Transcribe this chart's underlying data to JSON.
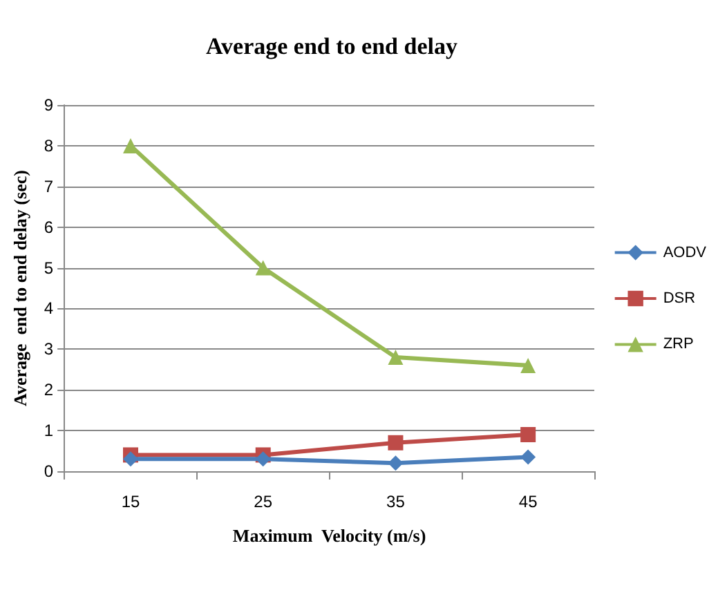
{
  "chart_data": {
    "type": "line",
    "title": "Average end to end delay",
    "xlabel": "Maximum  Velocity (m/s)",
    "ylabel": "Average  end to end delay (sec)",
    "categories": [
      "15",
      "25",
      "35",
      "45"
    ],
    "series": [
      {
        "name": "AODV",
        "color": "#4a7ebb",
        "marker": "diamond",
        "values": [
          0.3,
          0.3,
          0.2,
          0.35
        ]
      },
      {
        "name": "DSR",
        "color": "#be4b48",
        "marker": "square",
        "values": [
          0.4,
          0.4,
          0.7,
          0.9
        ]
      },
      {
        "name": "ZRP",
        "color": "#98b954",
        "marker": "triangle",
        "values": [
          8,
          5,
          2.8,
          2.6
        ]
      }
    ],
    "ylim": [
      0,
      9
    ],
    "yticks": [
      0,
      1,
      2,
      3,
      4,
      5,
      6,
      7,
      8,
      9
    ],
    "grid": "y",
    "legend": "right"
  }
}
